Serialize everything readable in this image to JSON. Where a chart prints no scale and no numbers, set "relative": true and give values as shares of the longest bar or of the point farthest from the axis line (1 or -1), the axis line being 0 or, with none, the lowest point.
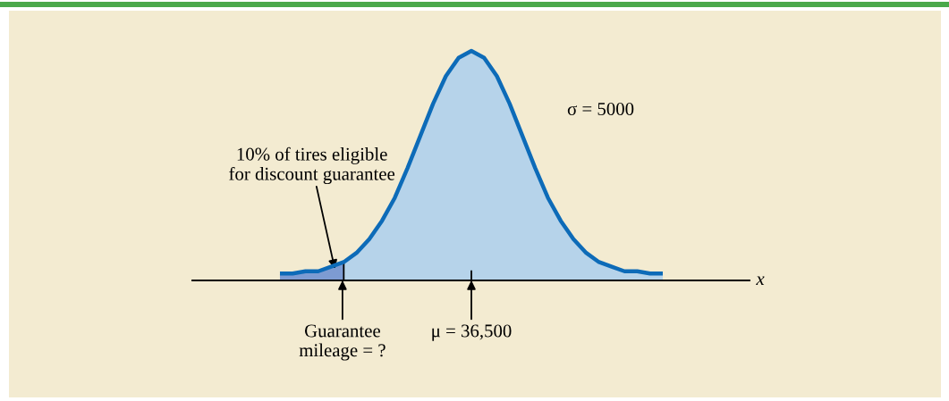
{
  "chart_data": {
    "type": "area",
    "relative": true,
    "xlabel": "x",
    "legend": false,
    "categories": [
      null,
      null,
      null,
      null,
      null,
      null,
      null,
      null,
      null,
      null,
      null,
      null,
      null,
      null,
      null,
      null,
      null,
      null,
      null,
      null,
      null,
      null,
      null,
      null,
      null,
      null,
      null,
      null,
      null,
      null,
      null
    ],
    "series": [
      {
        "color": "#0d6bb8",
        "values": [
          0.03,
          0.03,
          0.04,
          0.04,
          0.06,
          0.08,
          0.12,
          0.18,
          0.26,
          0.36,
          0.49,
          0.63,
          0.77,
          0.89,
          0.97,
          1.0,
          0.97,
          0.89,
          0.77,
          0.63,
          0.49,
          0.36,
          0.26,
          0.18,
          0.12,
          0.08,
          0.06,
          0.04,
          0.04,
          0.03,
          0.03
        ]
      },
      {
        "color": "#7d9bd2",
        "values": [
          0.03,
          0.03,
          0.04,
          0.04,
          0.06,
          0.08,
          null,
          null,
          null,
          null,
          null,
          null,
          null,
          null,
          null,
          null,
          null,
          null,
          null,
          null,
          null,
          null,
          null,
          null,
          null,
          null,
          null,
          null,
          null,
          null,
          null
        ]
      }
    ],
    "annotations": [
      "σ = 5000",
      "10% of tires eligible\nfor discount guarantee",
      "Guarantee\nmileage = ?",
      "μ = 36,500"
    ]
  }
}
